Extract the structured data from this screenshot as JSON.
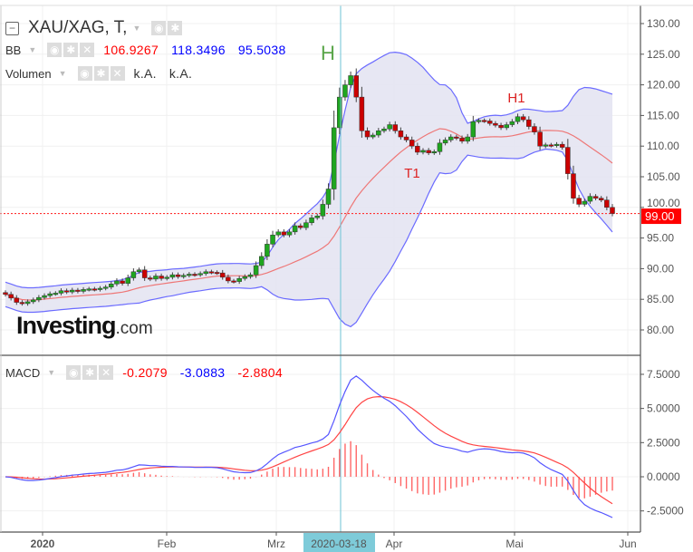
{
  "header": {
    "symbol": "XAU/XAG, T,",
    "bb": {
      "label": "BB",
      "middle": "106.9267",
      "upper": "118.3496",
      "lower": "95.5038"
    },
    "volume": {
      "label": "Volumen",
      "v1": "k.A.",
      "v2": "k.A."
    },
    "macd": {
      "label": "MACD",
      "hist": "-0.2079",
      "macd": "-3.0883",
      "signal": "-2.8804"
    }
  },
  "logo": {
    "main": "Investing",
    "suffix": ".com"
  },
  "colors": {
    "up": "#1fa61f",
    "down": "#cc0000",
    "bb_band": "#6b6bff",
    "bb_mid": "#ee7777",
    "bb_fill": "#e4e4f2",
    "macd": "#5555ff",
    "signal": "#ff4444",
    "crosshair": "#6cc3d5",
    "last_price": "#ff0000"
  },
  "icons": [
    "collapse-icon",
    "eye-icon",
    "gear-icon",
    "close-icon",
    "caret-down-icon"
  ],
  "chart_data": {
    "type": "candlestick",
    "price_axis": {
      "ylim": [
        77,
        132
      ],
      "ticks": [
        "130.00",
        "125.00",
        "120.00",
        "115.00",
        "110.00",
        "105.00",
        "100.00",
        "95.00",
        "90.00",
        "85.00",
        "80.00"
      ]
    },
    "macd_axis": {
      "ylim": [
        -3.3,
        8.2
      ],
      "ticks": [
        "7.5000",
        "5.0000",
        "2.5000",
        "0.0000",
        "-2.5000"
      ]
    },
    "time_axis": {
      "ticks": [
        "2020",
        "Feb",
        "Mrz",
        "Apr",
        "Mai",
        "Jun"
      ],
      "crosshair_label": "2020-03-18"
    },
    "last_price": "99.00",
    "annotations": [
      {
        "text": "H",
        "color": "#5aa64a"
      },
      {
        "text": "T1",
        "color": "#dd2222"
      },
      {
        "text": "H1",
        "color": "#dd2222"
      }
    ],
    "months_bar_counts": {
      "Dez": 6,
      "Jan": 22,
      "Feb": 20,
      "Mrz": 22,
      "Apr": 21,
      "Mai": 19
    },
    "close": [
      85.8,
      85.2,
      84.5,
      84.3,
      84.6,
      84.9,
      85.3,
      85.6,
      85.9,
      86.0,
      86.4,
      86.2,
      86.5,
      86.3,
      86.6,
      86.7,
      86.6,
      86.8,
      87.0,
      87.5,
      88.0,
      87.6,
      88.5,
      89.5,
      89.8,
      88.5,
      88.3,
      88.8,
      88.4,
      88.6,
      89.0,
      88.7,
      88.9,
      89.1,
      89.0,
      89.2,
      89.5,
      89.4,
      89.3,
      88.6,
      88.0,
      87.9,
      88.4,
      88.7,
      89.0,
      90.5,
      92.0,
      94.0,
      95.5,
      96.0,
      95.5,
      96.0,
      97.0,
      96.7,
      97.5,
      98.3,
      98.6,
      100.5,
      103.0,
      113.0,
      118.0,
      120.0,
      121.5,
      118.0,
      112.5,
      111.5,
      111.8,
      112.5,
      112.8,
      113.5,
      112.5,
      111.5,
      111.0,
      110.0,
      109.0,
      109.3,
      108.9,
      109.1,
      110.5,
      111.0,
      111.5,
      111.3,
      110.8,
      111.5,
      114.0,
      114.2,
      114.1,
      113.7,
      113.4,
      113.0,
      113.5,
      114.0,
      114.8,
      114.3,
      113.2,
      112.3,
      110.0,
      110.2,
      110.1,
      110.3,
      109.8,
      105.5,
      101.5,
      100.5,
      101.0,
      101.8,
      101.5,
      101.2,
      100.0,
      99.0
    ]
  }
}
